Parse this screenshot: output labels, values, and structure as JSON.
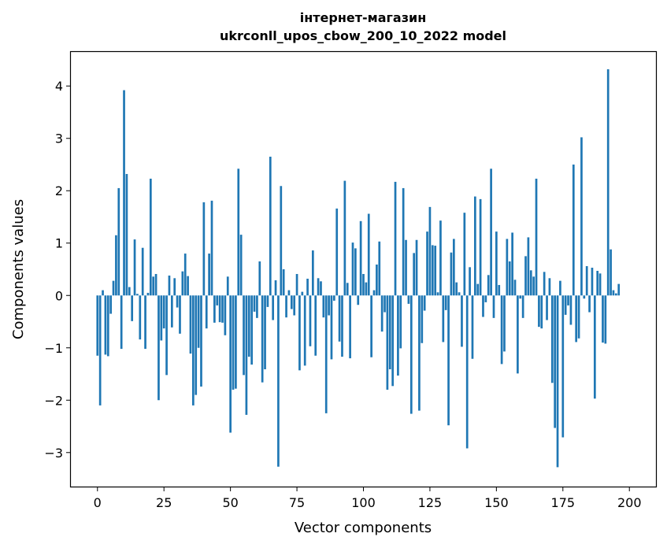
{
  "chart_data": {
    "type": "bar",
    "title": "інтернет-магазин",
    "subtitle": "ukrconll_upos_cbow_200_10_2022 model",
    "xlabel": "Vector components",
    "ylabel": "Components values",
    "xlim": [
      -10,
      210
    ],
    "ylim": [
      -3.65,
      4.65
    ],
    "xticks": [
      0,
      25,
      50,
      75,
      100,
      125,
      150,
      175,
      200
    ],
    "yticks": [
      -3,
      -2,
      -1,
      0,
      1,
      2,
      3,
      4
    ],
    "bar_color": "#1f77b4",
    "grid": false,
    "legend": "none",
    "values": [
      -1.15,
      -2.1,
      0.1,
      -1.13,
      -1.16,
      -0.35,
      0.28,
      1.15,
      2.05,
      -1.02,
      3.92,
      2.32,
      0.16,
      -0.49,
      1.07,
      0.03,
      -0.84,
      0.91,
      -1.02,
      0.05,
      2.23,
      0.36,
      0.41,
      -2.0,
      -0.86,
      -0.63,
      -1.52,
      0.38,
      -0.61,
      0.33,
      -0.23,
      -0.73,
      0.46,
      0.8,
      0.37,
      -1.11,
      -2.1,
      -1.9,
      -1.0,
      -1.74,
      1.78,
      -0.63,
      0.8,
      1.81,
      -0.52,
      -0.19,
      -0.51,
      -0.52,
      -0.76,
      0.36,
      -2.62,
      -1.8,
      -1.78,
      2.42,
      1.16,
      -1.52,
      -2.28,
      -1.17,
      -1.32,
      -0.31,
      -0.43,
      0.65,
      -1.66,
      -1.41,
      -0.22,
      2.65,
      -0.47,
      0.29,
      -3.27,
      2.09,
      0.5,
      -0.42,
      0.1,
      -0.26,
      -0.38,
      0.41,
      -1.43,
      0.07,
      -1.34,
      0.32,
      -0.97,
      0.86,
      -1.15,
      0.33,
      0.27,
      -0.42,
      -2.25,
      -0.38,
      -1.22,
      -0.1,
      1.66,
      -0.88,
      -1.17,
      2.19,
      0.24,
      -1.2,
      1.01,
      0.9,
      -0.18,
      1.42,
      0.41,
      0.25,
      1.56,
      -1.18,
      0.1,
      0.59,
      1.03,
      -0.69,
      -0.32,
      -1.8,
      -1.41,
      -1.73,
      2.17,
      -1.53,
      -1.01,
      2.05,
      1.06,
      -0.16,
      -2.26,
      0.81,
      1.06,
      -2.2,
      -0.91,
      -0.29,
      1.22,
      1.69,
      0.96,
      0.95,
      0.06,
      1.43,
      -0.89,
      -0.28,
      -2.48,
      0.82,
      1.08,
      0.25,
      0.06,
      -0.98,
      1.58,
      -2.92,
      0.54,
      -1.21,
      1.89,
      0.22,
      1.84,
      -0.41,
      -0.13,
      0.39,
      2.42,
      -0.43,
      1.22,
      0.2,
      -1.31,
      -1.07,
      1.08,
      0.65,
      1.2,
      0.3,
      -1.49,
      -0.06,
      -0.43,
      0.75,
      1.11,
      0.48,
      0.36,
      2.23,
      -0.6,
      -0.63,
      0.45,
      -0.47,
      0.33,
      -1.67,
      -2.53,
      -3.28,
      0.28,
      -2.71,
      -0.37,
      -0.19,
      -0.56,
      2.5,
      -0.89,
      -0.82,
      3.02,
      -0.06,
      0.56,
      -0.32,
      0.53,
      -1.97,
      0.47,
      0.42,
      -0.9,
      -0.92,
      4.32,
      0.88,
      0.1,
      0.04,
      0.22
    ]
  }
}
